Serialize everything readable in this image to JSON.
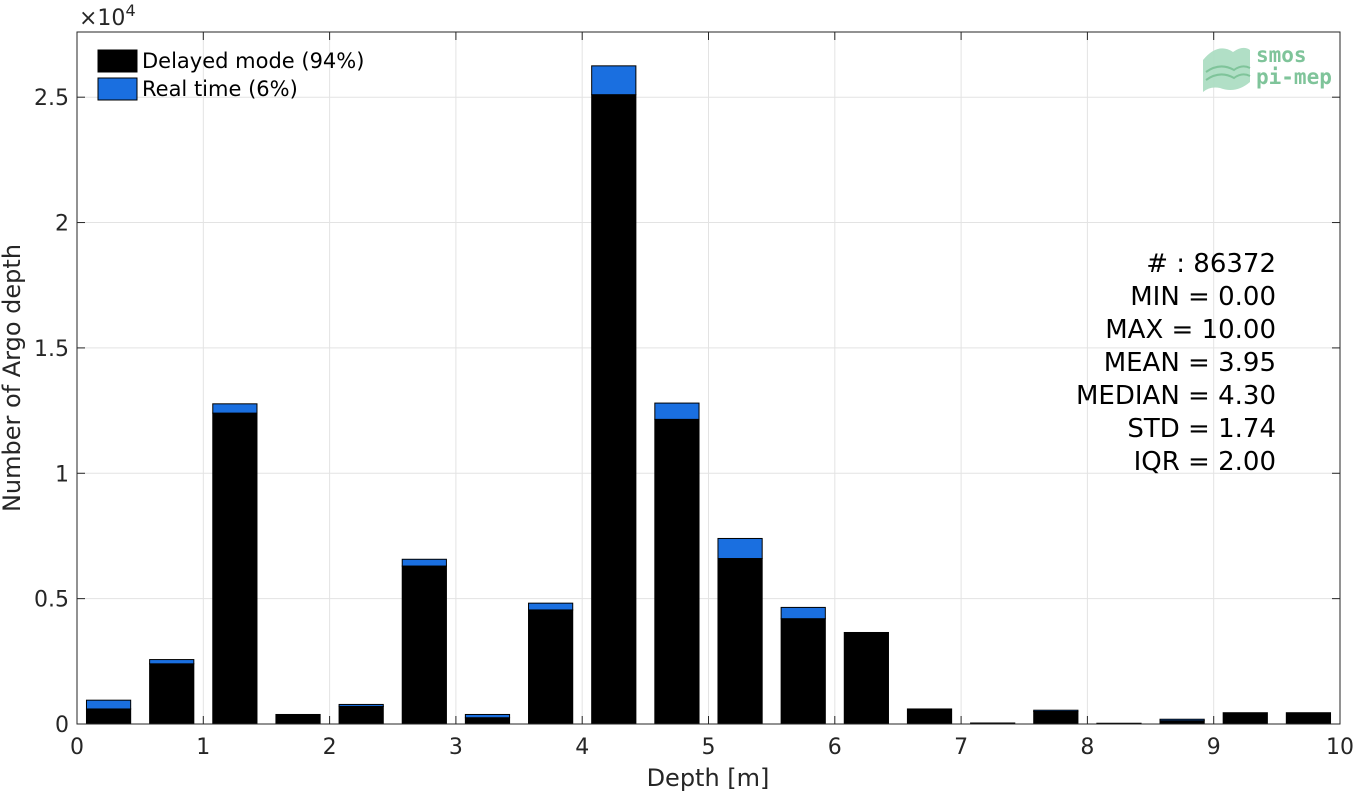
{
  "chart_data": {
    "type": "bar",
    "stacked": true,
    "xlabel": "Depth [m]",
    "ylabel": "Number of Argo depth",
    "exponent_label": "×10",
    "exponent_power": "4",
    "xlim": [
      0,
      10
    ],
    "ylim": [
      0,
      27600
    ],
    "xticks": [
      "0",
      "1",
      "2",
      "3",
      "4",
      "5",
      "6",
      "7",
      "8",
      "9",
      "10"
    ],
    "yticks": [
      "0",
      "0.5",
      "1",
      "1.5",
      "2",
      "2.5"
    ],
    "ytick_values": [
      0,
      5000,
      10000,
      15000,
      20000,
      25000
    ],
    "grid": true,
    "legend_position": "top-left",
    "bin_width": 0.5,
    "x": [
      0.25,
      0.75,
      1.25,
      1.75,
      2.25,
      2.75,
      3.25,
      3.75,
      4.25,
      4.75,
      5.25,
      5.75,
      6.25,
      6.75,
      7.25,
      7.75,
      8.25,
      8.75,
      9.25,
      9.75
    ],
    "series": [
      {
        "name": "Delayed mode (94%)",
        "color": "#000000",
        "values": [
          600,
          2400,
          12400,
          380,
          700,
          6300,
          250,
          4550,
          25100,
          12150,
          6600,
          4200,
          3650,
          600,
          40,
          500,
          30,
          130,
          450,
          450
        ]
      },
      {
        "name": "Real time (6%)",
        "color": "#1a6fe0",
        "values": [
          350,
          170,
          370,
          0,
          80,
          270,
          130,
          270,
          1150,
          650,
          800,
          450,
          0,
          0,
          0,
          50,
          0,
          60,
          0,
          0
        ]
      }
    ],
    "stats": [
      "# : 86372",
      "MIN = 0.00",
      "MAX =  10.00",
      "MEAN = 3.95",
      "MEDIAN = 4.30",
      "STD = 1.74",
      "IQR = 2.00"
    ],
    "logo_lines": [
      "smos",
      "pi-mep"
    ]
  }
}
